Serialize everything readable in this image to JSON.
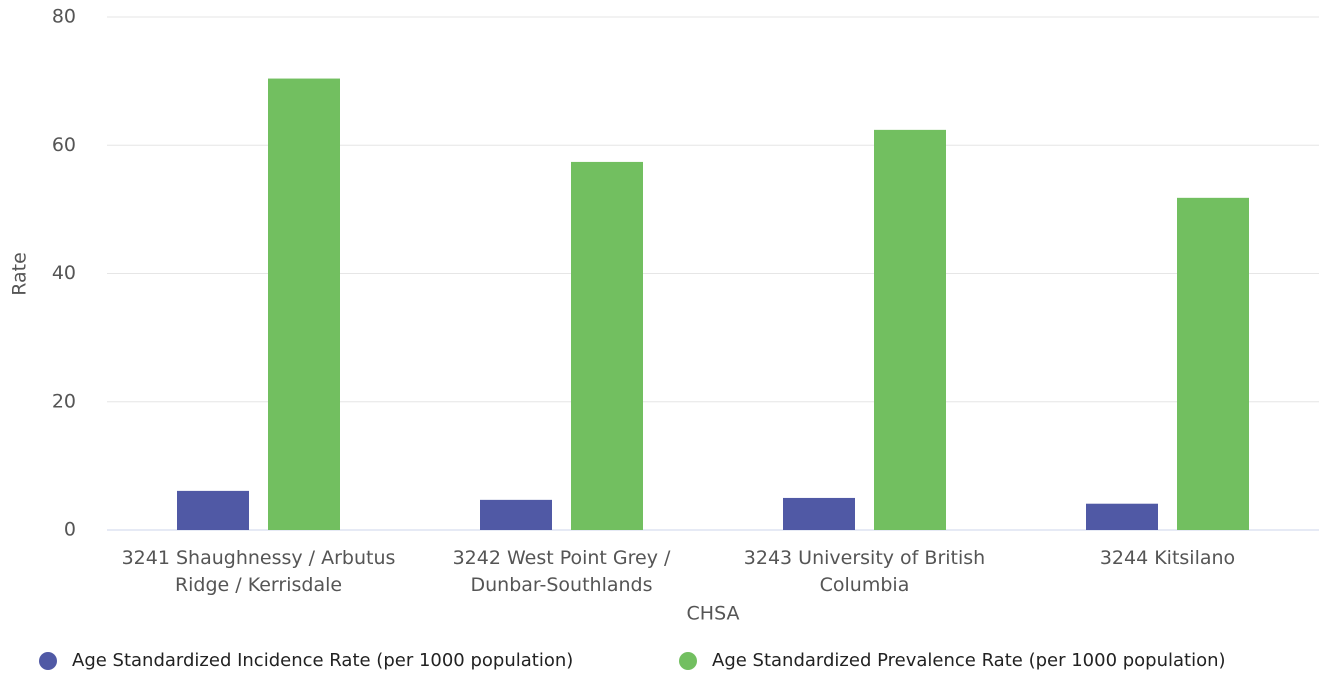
{
  "chart_data": {
    "type": "bar",
    "categories": [
      "3241 Shaughnessy / Arbutus Ridge / Kerrisdale",
      "3242 West Point Grey / Dunbar-Southlands",
      "3243 University of British Columbia",
      "3244 Kitsilano"
    ],
    "series": [
      {
        "name": "Age Standardized Incidence Rate (per 1000 population)",
        "color": "#5059a5",
        "values": [
          6.1,
          4.7,
          5.0,
          4.1
        ]
      },
      {
        "name": "Age Standardized Prevalence Rate (per 1000 population)",
        "color": "#72bf60",
        "values": [
          70.4,
          57.4,
          62.4,
          51.8
        ]
      }
    ],
    "xlabel": "CHSA",
    "ylabel": "Rate",
    "ylim": [
      0,
      80
    ],
    "yticks": [
      0,
      20,
      40,
      60,
      80
    ],
    "grid": true
  }
}
